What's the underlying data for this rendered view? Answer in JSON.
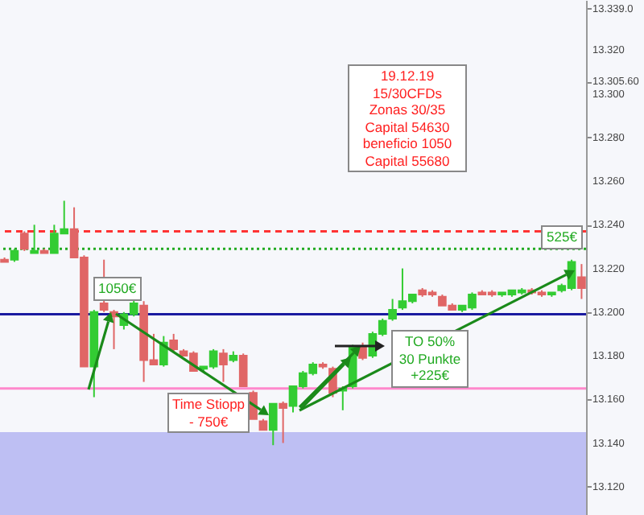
{
  "chart_data": {
    "type": "candlestick",
    "categories": [
      null,
      null,
      null,
      null,
      null,
      null,
      null,
      null,
      null,
      null,
      null,
      null,
      null,
      null,
      null,
      null,
      null,
      null,
      null,
      null,
      null,
      null,
      null,
      null,
      null,
      null,
      null,
      null,
      null,
      null,
      null,
      null,
      null,
      null,
      null,
      null,
      null,
      null,
      null,
      null,
      null,
      null,
      null,
      null,
      null,
      null,
      null,
      null,
      null,
      null,
      null,
      null,
      null,
      null,
      null,
      null,
      null,
      null,
      null
    ],
    "ohlc": [
      [
        13224,
        13225,
        13223,
        13223
      ],
      [
        13224,
        13229,
        13223,
        13228
      ],
      [
        13236,
        13237,
        13228,
        13229
      ],
      [
        13227,
        13240,
        13227,
        13228
      ],
      [
        13228,
        13229,
        13227,
        13227
      ],
      [
        13227,
        13240,
        13227,
        13236
      ],
      [
        13236,
        13251,
        13236,
        13238
      ],
      [
        13238,
        13248,
        13225,
        13225
      ],
      [
        13225,
        13226,
        13175,
        13175
      ],
      [
        13175,
        13201,
        13161,
        13200
      ],
      [
        13204,
        13224,
        13200,
        13201
      ],
      [
        13200,
        13201,
        13183,
        13198
      ],
      [
        13194,
        13200,
        13192,
        13199
      ],
      [
        13199,
        13206,
        13198,
        13204
      ],
      [
        13203,
        13205,
        13168,
        13178
      ],
      [
        13178,
        13190,
        13176,
        13176
      ],
      [
        13176,
        13189,
        13175,
        13186
      ],
      [
        13187,
        13190,
        13182,
        13183
      ],
      [
        13182,
        13183,
        13180,
        13180
      ],
      [
        13181,
        13182,
        13173,
        13173
      ],
      [
        13174,
        13175,
        13173,
        13175
      ],
      [
        13175,
        13183,
        13174,
        13182
      ],
      [
        13181,
        13183,
        13168,
        13176
      ],
      [
        13178,
        13182,
        13177,
        13180
      ],
      [
        13180,
        13181,
        13166,
        13166
      ],
      [
        13163,
        13164,
        13151,
        13151
      ],
      [
        13150,
        13151,
        13146,
        13146
      ],
      [
        13146,
        13158,
        13139,
        13158
      ],
      [
        13158,
        13159,
        13140,
        13156
      ],
      [
        13157,
        13166,
        13154,
        13166
      ],
      [
        13166,
        13173,
        13165,
        13172
      ],
      [
        13172,
        13177,
        13171,
        13176
      ],
      [
        13176,
        13177,
        13174,
        13175
      ],
      [
        13174,
        13175,
        13161,
        13163
      ],
      [
        13164,
        13166,
        13155,
        13165
      ],
      [
        13166,
        13185,
        13165,
        13184
      ],
      [
        13184,
        13186,
        13178,
        13179
      ],
      [
        13180,
        13191,
        13179,
        13190
      ],
      [
        13190,
        13197,
        13189,
        13196
      ],
      [
        13197,
        13206,
        13196,
        13201
      ],
      [
        13202,
        13220,
        13201,
        13205
      ],
      [
        13205,
        13208,
        13204,
        13208
      ],
      [
        13210,
        13211,
        13207,
        13208
      ],
      [
        13209,
        13210,
        13207,
        13208
      ],
      [
        13207,
        13208,
        13203,
        13203
      ],
      [
        13203,
        13204,
        13201,
        13201
      ],
      [
        13201,
        13203,
        13200,
        13203
      ],
      [
        13202,
        13209,
        13201,
        13208
      ],
      [
        13209,
        13210,
        13208,
        13208
      ],
      [
        13209,
        13210,
        13207,
        13208
      ],
      [
        13208,
        13209,
        13207,
        13209
      ],
      [
        13208,
        13210,
        13207,
        13210
      ],
      [
        13209,
        13211,
        13208,
        13210
      ],
      [
        13210,
        13211,
        13208,
        13209
      ],
      [
        13209,
        13210,
        13207,
        13208
      ],
      [
        13208,
        13209,
        13207,
        13209
      ],
      [
        13210,
        13213,
        13209,
        13212
      ],
      [
        13211,
        13224,
        13210,
        13223
      ],
      [
        13216,
        13222,
        13206,
        13211
      ]
    ],
    "ylim": [
      13107,
      13343
    ],
    "yticks": [
      {
        "value": 13120,
        "label": "13.120"
      },
      {
        "value": 13140,
        "label": "13.140"
      },
      {
        "value": 13160,
        "label": "13.160"
      },
      {
        "value": 13180,
        "label": "13.180"
      },
      {
        "value": 13200,
        "label": "13.200"
      },
      {
        "value": 13220,
        "label": "13.220"
      },
      {
        "value": 13240,
        "label": "13.240"
      },
      {
        "value": 13260,
        "label": "13.260"
      },
      {
        "value": 13280,
        "label": "13.280"
      },
      {
        "value": 13300,
        "label": "13.300"
      },
      {
        "value": 13305.6,
        "label": "13.305.60"
      },
      {
        "value": 13320,
        "label": "13.320"
      },
      {
        "value": 13339,
        "label": "13.339.0"
      }
    ],
    "tick_labels": "y",
    "ref_lines": [
      {
        "axis": "y",
        "value": 13237,
        "color": "#ff3333",
        "line_style": "dashed"
      },
      {
        "axis": "y",
        "value": 13229,
        "color": "#22aa22",
        "line_style": "dotted"
      },
      {
        "axis": "y",
        "value": 13199,
        "color": "#1a1aa0",
        "line_style": "solid"
      },
      {
        "axis": "y",
        "value": 13165,
        "color": "#ff88cc",
        "line_style": "solid"
      }
    ],
    "bands": [
      {
        "axis": "y",
        "from": 13107,
        "to": 13145,
        "color": "#9999ee"
      }
    ],
    "annotations": [
      "19.12.19",
      "15/30CFDs",
      "Zonas 30/35",
      "Capital 54630",
      "beneficio 1050",
      "Capital 55680",
      "1050€",
      "Time Stiopp",
      "- 750€",
      "TO 50%",
      "30 Punkte",
      "+225€",
      "525€"
    ]
  }
}
